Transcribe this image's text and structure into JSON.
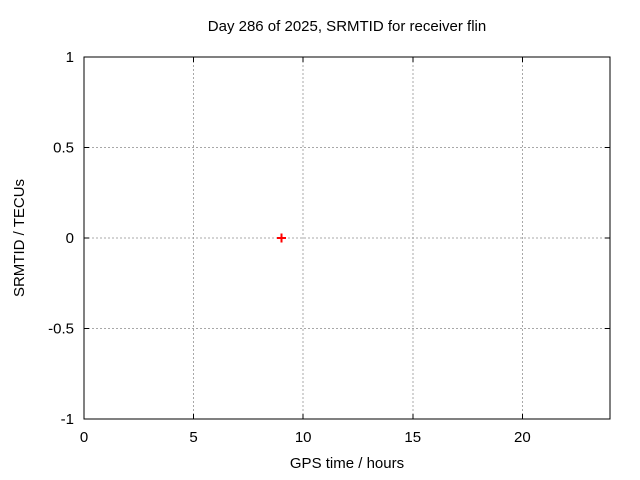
{
  "figure": {
    "background": "#ffffff"
  },
  "chart_data": {
    "type": "scatter",
    "title": "Day 286 of 2025, SRMTID for receiver flin",
    "xlabel": "GPS time / hours",
    "ylabel": "SRMTID / TECUs",
    "xlim": [
      0,
      24
    ],
    "ylim": [
      -1,
      1
    ],
    "x_ticks": [
      {
        "value": 0,
        "label": "0"
      },
      {
        "value": 5,
        "label": "5"
      },
      {
        "value": 10,
        "label": "10"
      },
      {
        "value": 15,
        "label": "15"
      },
      {
        "value": 20,
        "label": "20"
      }
    ],
    "y_ticks": [
      {
        "value": 1,
        "label": "1"
      },
      {
        "value": 0.5,
        "label": "0.5"
      },
      {
        "value": 0,
        "label": "0"
      },
      {
        "value": -0.5,
        "label": "-0.5"
      },
      {
        "value": -1,
        "label": "-1"
      }
    ],
    "grid": true,
    "legend": "none",
    "series": [
      {
        "marker": "plus",
        "color": "#ff0000",
        "points": [
          {
            "x": 9,
            "y": 0
          }
        ]
      }
    ],
    "colors": {
      "axis": "#000000",
      "grid": "#a8a8a8",
      "background": "#ffffff"
    }
  }
}
